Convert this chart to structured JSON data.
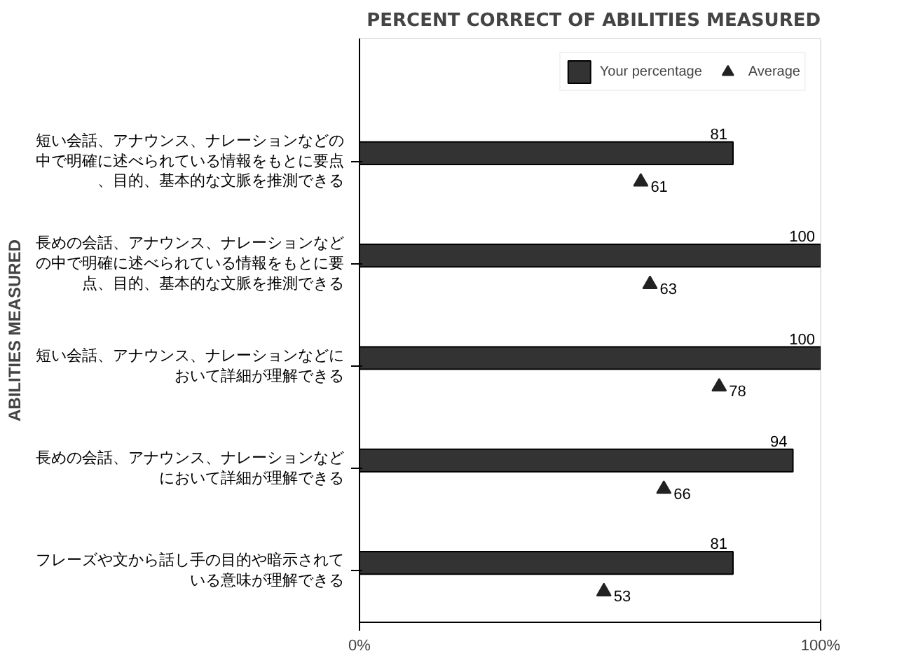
{
  "chart_data": {
    "type": "bar",
    "orientation": "horizontal",
    "title": "PERCENT CORRECT OF ABILITIES MEASURED",
    "ylabel": "ABILITIES MEASURED",
    "categories": [
      "短い会話、アナウンス、ナレーションなどの中で明確に述べられている情報をもとに要点、目的、基本的な文脈を推測できる",
      "長めの会話、アナウンス、ナレーションなどの中で明確に述べられている情報をもとに要点、目的、基本的な文脈を推測できる",
      "短い会話、アナウンス、ナレーションなどにおいて詳細が理解できる",
      "長めの会話、アナウンス、ナレーションなどにおいて詳細が理解できる",
      "フレーズや文から話し手の目的や暗示されている意味が理解できる"
    ],
    "series": [
      {
        "name": "Your percentage",
        "color": "#333333",
        "values": [
          81,
          100,
          100,
          94,
          81
        ]
      },
      {
        "name": "Average",
        "type": "scatter",
        "marker": "triangle",
        "color": "#222222",
        "values": [
          61,
          63,
          78,
          66,
          53
        ]
      }
    ],
    "xlim": [
      0,
      100
    ],
    "xticks": [
      {
        "value": 0,
        "label": "0%"
      },
      {
        "value": 100,
        "label": "100%"
      }
    ],
    "data_labels": true,
    "grid": false,
    "legend": "top right"
  }
}
